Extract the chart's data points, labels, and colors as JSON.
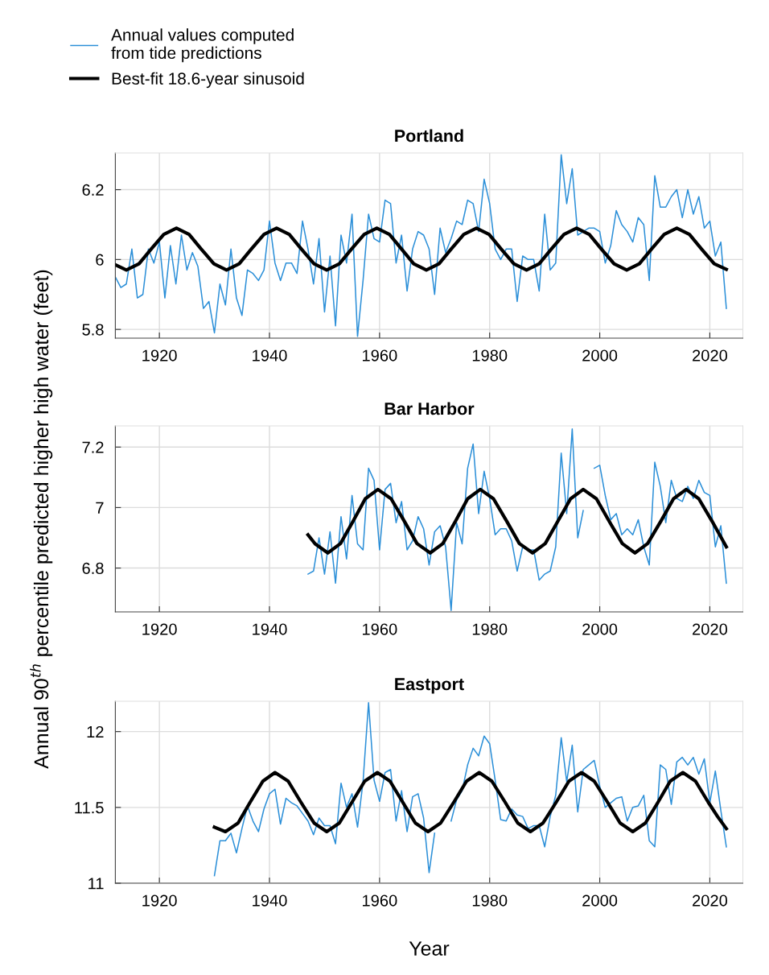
{
  "chart_data": [
    {
      "type": "line",
      "title": "Portland",
      "legend": "top left",
      "grid": true,
      "xlim": [
        1912,
        2026
      ],
      "xticks": [
        1920,
        1940,
        1960,
        1980,
        2000,
        2020
      ],
      "ylim": [
        5.775,
        6.305
      ],
      "yticks": [
        {
          "value": 5.8,
          "label": "5.8"
        },
        {
          "value": 6,
          "label": "6"
        },
        {
          "value": 6.2,
          "label": "6.2"
        }
      ],
      "x": [
        1912,
        1913,
        1914,
        1915,
        1916,
        1917,
        1918,
        1919,
        1920,
        1921,
        1922,
        1923,
        1924,
        1925,
        1926,
        1927,
        1928,
        1929,
        1930,
        1931,
        1932,
        1933,
        1934,
        1935,
        1936,
        1937,
        1938,
        1939,
        1940,
        1941,
        1942,
        1943,
        1944,
        1945,
        1946,
        1947,
        1948,
        1949,
        1950,
        1951,
        1952,
        1953,
        1954,
        1955,
        1956,
        1957,
        1958,
        1959,
        1960,
        1961,
        1962,
        1963,
        1964,
        1965,
        1966,
        1967,
        1968,
        1969,
        1970,
        1971,
        1972,
        1973,
        1974,
        1975,
        1976,
        1977,
        1978,
        1979,
        1980,
        1981,
        1982,
        1983,
        1984,
        1985,
        1986,
        1987,
        1988,
        1989,
        1990,
        1991,
        1992,
        1993,
        1994,
        1995,
        1996,
        1997,
        1998,
        1999,
        2000,
        2001,
        2002,
        2003,
        2004,
        2005,
        2006,
        2007,
        2008,
        2009,
        2010,
        2011,
        2012,
        2013,
        2014,
        2015,
        2016,
        2017,
        2018,
        2019,
        2020,
        2021,
        2022,
        2023
      ],
      "series": [
        {
          "name": "Annual values computed\nfrom tide predictions",
          "color": "#2b8fd8",
          "values": [
            5.95,
            5.92,
            5.93,
            6.03,
            5.89,
            5.9,
            6.03,
            5.99,
            6.05,
            5.89,
            6.04,
            5.93,
            6.07,
            5.97,
            6.02,
            5.98,
            5.86,
            5.88,
            5.79,
            5.93,
            5.87,
            6.03,
            5.89,
            5.84,
            5.97,
            5.96,
            5.94,
            5.97,
            6.11,
            5.99,
            5.94,
            5.99,
            5.99,
            5.96,
            6.11,
            6.03,
            5.93,
            6.06,
            5.85,
            6.01,
            5.81,
            6.07,
            5.99,
            6.13,
            5.78,
            5.94,
            6.13,
            6.06,
            6.05,
            6.17,
            6.16,
            5.99,
            6.07,
            5.91,
            6.03,
            6.08,
            6.07,
            6.03,
            5.9,
            6.09,
            6.02,
            6.06,
            6.11,
            6.1,
            6.17,
            6.16,
            6.08,
            6.23,
            6.16,
            6.03,
            6.0,
            6.03,
            6.03,
            5.88,
            6.01,
            6.0,
            6.0,
            5.91,
            6.13,
            5.97,
            5.99,
            6.3,
            6.16,
            6.26,
            6.07,
            6.08,
            6.09,
            6.09,
            6.08,
            5.99,
            6.04,
            6.14,
            6.1,
            6.08,
            6.05,
            6.12,
            6.1,
            5.94,
            6.24,
            6.15,
            6.15,
            6.18,
            6.2,
            6.12,
            6.2,
            6.13,
            6.18,
            6.09,
            6.11,
            6.01,
            6.05,
            5.86
          ]
        },
        {
          "name": "Best-fit 18.6-year sinusoid",
          "color": "#000000",
          "x": [
            1912,
            1914.0,
            1916.3,
            1918.5,
            1920.8,
            1923.1,
            1925.4,
            1927.6,
            1929.9,
            1932.2,
            1934.5,
            1936.7,
            1939.0,
            1941.3,
            1943.6,
            1945.8,
            1948.1,
            1950.4,
            1952.7,
            1954.9,
            1957.2,
            1959.5,
            1961.8,
            1964.0,
            1966.2,
            1968.5,
            1970.8,
            1973.0,
            1975.3,
            1977.6,
            1979.9,
            1982.1,
            1984.4,
            1986.7,
            1989.0,
            1991.2,
            1993.5,
            1995.8,
            1998.1,
            2000.3,
            2002.6,
            2004.9,
            2007.2,
            2009.4,
            2011.7,
            2014.0,
            2016.3,
            2018.5,
            2020.8,
            2023
          ],
          "values": [
            5.985,
            5.97,
            5.988,
            6.03,
            6.072,
            6.09,
            6.072,
            6.03,
            5.988,
            5.97,
            5.988,
            6.03,
            6.072,
            6.09,
            6.072,
            6.03,
            5.988,
            5.97,
            5.988,
            6.03,
            6.072,
            6.09,
            6.072,
            6.03,
            5.988,
            5.97,
            5.988,
            6.03,
            6.072,
            6.09,
            6.072,
            6.03,
            5.988,
            5.97,
            5.988,
            6.03,
            6.072,
            6.09,
            6.072,
            6.03,
            5.988,
            5.97,
            5.988,
            6.03,
            6.072,
            6.09,
            6.072,
            6.03,
            5.988,
            5.972
          ]
        }
      ]
    },
    {
      "type": "line",
      "title": "Bar Harbor",
      "ylabel": "Annual 90$^{th}$ percentile predicted higher high water (feet)",
      "grid": true,
      "xlim": [
        1912,
        2026
      ],
      "xticks": [
        1920,
        1940,
        1960,
        1980,
        2000,
        2020
      ],
      "ylim": [
        6.655,
        7.27
      ],
      "yticks": [
        {
          "value": 6.8,
          "label": "6.8"
        },
        7,
        {
          "value": 7.2,
          "label": "7.2"
        }
      ],
      "x": [
        1947,
        1948,
        1949,
        1950,
        1951,
        1952,
        1953,
        1954,
        1955,
        1956,
        1957,
        1958,
        1959,
        1960,
        1961,
        1962,
        1963,
        1964,
        1965,
        1966,
        1967,
        1968,
        1969,
        1970,
        1971,
        1972,
        1973,
        1974,
        1975,
        1976,
        1977,
        1978,
        1979,
        1980,
        1981,
        1982,
        1983,
        1984,
        1985,
        1986,
        1987,
        1988,
        1989,
        1990,
        1991,
        1992,
        1993,
        1994,
        1995,
        1996,
        1997,
        1998,
        1999,
        2000,
        2001,
        2002,
        2003,
        2004,
        2005,
        2006,
        2007,
        2008,
        2009,
        2010,
        2011,
        2012,
        2013,
        2014,
        2015,
        2016,
        2017,
        2018,
        2019,
        2020,
        2021,
        2022,
        2023
      ],
      "series": [
        {
          "color": "#2b8fd8",
          "values": [
            6.78,
            6.79,
            6.9,
            6.78,
            6.92,
            6.75,
            6.97,
            6.83,
            7.04,
            6.88,
            6.86,
            7.13,
            7.09,
            6.86,
            7.06,
            7.08,
            6.95,
            7.02,
            6.86,
            6.89,
            6.97,
            6.93,
            6.81,
            6.92,
            6.94,
            6.87,
            6.66,
            6.95,
            6.88,
            7.13,
            7.21,
            6.98,
            7.12,
            7.03,
            6.91,
            6.93,
            6.93,
            6.89,
            6.79,
            6.87,
            6.86,
            6.86,
            6.76,
            6.78,
            6.79,
            6.87,
            7.18,
            6.98,
            7.26,
            6.9,
            6.99,
            null,
            7.13,
            7.14,
            7.04,
            6.96,
            6.98,
            6.91,
            6.93,
            6.91,
            6.96,
            6.87,
            6.81,
            7.15,
            7.07,
            6.95,
            7.09,
            7.03,
            7.02,
            7.07,
            7.03,
            7.09,
            7.05,
            7.04,
            6.87,
            6.94,
            6.75
          ]
        },
        {
          "color": "#000000",
          "x": [
            1947,
            1948.3,
            1950.6,
            1952.9,
            1955.2,
            1957.4,
            1959.7,
            1962.1,
            1964.5,
            1966.8,
            1969.2,
            1971.5,
            1973.8,
            1976.0,
            1978.3,
            1980.7,
            1983.1,
            1985.4,
            1987.8,
            1990.1,
            1992.4,
            1994.7,
            1997.0,
            1999.4,
            2001.7,
            2004.1,
            2006.4,
            2008.7,
            2011.1,
            2013.4,
            2015.7,
            2018.0,
            2020.4,
            2023
          ],
          "values": [
            6.91,
            6.88,
            6.85,
            6.881,
            6.955,
            7.029,
            7.06,
            7.029,
            6.955,
            6.881,
            6.85,
            6.881,
            6.955,
            7.029,
            7.06,
            7.029,
            6.955,
            6.881,
            6.85,
            6.881,
            6.955,
            7.029,
            7.06,
            7.029,
            6.955,
            6.881,
            6.85,
            6.881,
            6.955,
            7.029,
            7.06,
            7.029,
            6.955,
            6.87
          ]
        }
      ]
    },
    {
      "type": "line",
      "title": "Eastport",
      "xlabel": "Year",
      "grid": true,
      "xlim": [
        1912,
        2026
      ],
      "xticks": [
        1920,
        1940,
        1960,
        1980,
        2000,
        2020
      ],
      "ylim": [
        11,
        12.2
      ],
      "yticks": [
        11,
        {
          "value": 11.5,
          "label": "11.5"
        },
        12
      ],
      "x": [
        1930,
        1931,
        1932,
        1933,
        1934,
        1935,
        1936,
        1937,
        1938,
        1939,
        1940,
        1941,
        1942,
        1943,
        1944,
        1945,
        1946,
        1947,
        1948,
        1949,
        1950,
        1951,
        1952,
        1953,
        1954,
        1955,
        1956,
        1957,
        1958,
        1959,
        1960,
        1961,
        1962,
        1963,
        1964,
        1965,
        1966,
        1967,
        1968,
        1969,
        1970,
        1971,
        1972,
        1973,
        1974,
        1975,
        1976,
        1977,
        1978,
        1979,
        1980,
        1981,
        1982,
        1983,
        1984,
        1985,
        1986,
        1987,
        1988,
        1989,
        1990,
        1991,
        1992,
        1993,
        1994,
        1995,
        1996,
        1997,
        1998,
        1999,
        2000,
        2001,
        2002,
        2003,
        2004,
        2005,
        2006,
        2007,
        2008,
        2009,
        2010,
        2011,
        2012,
        2013,
        2014,
        2015,
        2016,
        2017,
        2018,
        2019,
        2020,
        2021,
        2022,
        2023
      ],
      "series": [
        {
          "color": "#2b8fd8",
          "values": [
            11.05,
            11.28,
            11.28,
            11.33,
            11.2,
            11.36,
            11.51,
            11.41,
            11.34,
            11.49,
            11.59,
            11.62,
            11.39,
            11.56,
            11.53,
            11.51,
            11.46,
            11.41,
            11.32,
            11.43,
            11.38,
            11.38,
            11.26,
            11.66,
            11.5,
            11.59,
            11.37,
            11.67,
            12.19,
            11.68,
            11.54,
            11.73,
            11.75,
            11.41,
            11.61,
            11.34,
            11.57,
            11.59,
            11.43,
            11.07,
            11.33,
            null,
            null,
            11.41,
            11.55,
            11.61,
            11.78,
            11.89,
            11.84,
            11.97,
            11.92,
            11.68,
            11.42,
            11.41,
            11.49,
            11.45,
            11.44,
            11.36,
            11.38,
            11.38,
            11.24,
            11.44,
            11.58,
            11.96,
            11.67,
            11.91,
            11.47,
            11.75,
            11.78,
            11.81,
            11.64,
            11.5,
            11.53,
            11.56,
            11.57,
            11.41,
            11.5,
            11.51,
            11.58,
            11.28,
            11.24,
            11.78,
            11.75,
            11.52,
            11.8,
            11.83,
            11.78,
            11.83,
            11.72,
            11.82,
            11.53,
            11.74,
            11.48,
            11.24
          ]
        },
        {
          "color": "#000000",
          "x": [
            1930,
            1932.0,
            1934.3,
            1936.5,
            1938.8,
            1941.0,
            1943.4,
            1945.7,
            1948.1,
            1950.4,
            1952.7,
            1955.0,
            1957.3,
            1959.6,
            1961.9,
            1964.2,
            1966.5,
            1968.8,
            1971.1,
            1973.5,
            1975.8,
            1978.1,
            1980.4,
            1982.8,
            1985.1,
            1987.4,
            1989.7,
            1992.1,
            1994.4,
            1996.7,
            1999.0,
            2001.4,
            2003.7,
            2006.0,
            2008.3,
            2010.6,
            2012.8,
            2015.1,
            2017.4,
            2019.7,
            2021.4,
            2023
          ],
          "values": [
            11.37,
            11.34,
            11.397,
            11.535,
            11.673,
            11.73,
            11.673,
            11.535,
            11.397,
            11.34,
            11.397,
            11.535,
            11.673,
            11.73,
            11.673,
            11.535,
            11.397,
            11.34,
            11.397,
            11.535,
            11.673,
            11.73,
            11.673,
            11.535,
            11.397,
            11.34,
            11.397,
            11.535,
            11.673,
            11.73,
            11.673,
            11.535,
            11.397,
            11.34,
            11.397,
            11.535,
            11.673,
            11.73,
            11.673,
            11.535,
            11.44,
            11.36
          ]
        }
      ]
    }
  ]
}
